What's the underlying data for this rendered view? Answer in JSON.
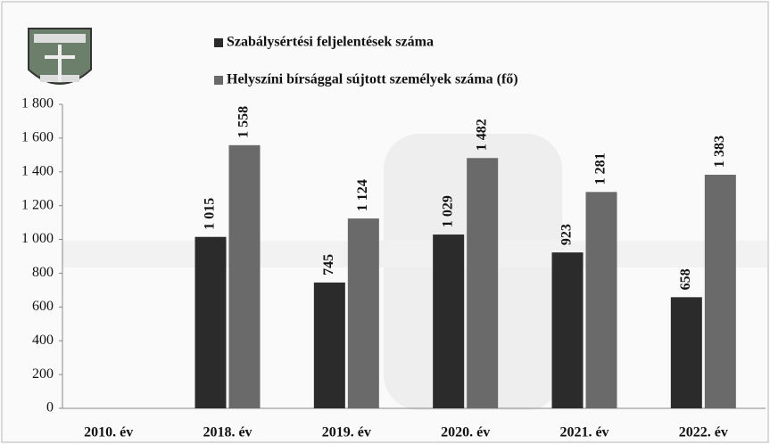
{
  "chart_data": {
    "type": "bar",
    "categories": [
      "2010. év",
      "2018. év",
      "2019. év",
      "2020. év",
      "2021. év",
      "2022. év"
    ],
    "series": [
      {
        "name": "Szabálysértési feljelentések száma",
        "color": "#2b2b2b",
        "values": [
          null,
          1015,
          745,
          1029,
          923,
          658
        ],
        "value_labels": [
          null,
          "1 015",
          "745",
          "1 029",
          "923",
          "658"
        ]
      },
      {
        "name": "Helyszíni bírsággal sújtott személyek száma (fő)",
        "color": "#6a6a6a",
        "values": [
          null,
          1558,
          1124,
          1482,
          1281,
          1383
        ],
        "value_labels": [
          null,
          "1 558",
          "1 124",
          "1 482",
          "1 281",
          "1 383"
        ]
      }
    ],
    "ylim": [
      0,
      1800
    ],
    "yticks": [
      0,
      200,
      400,
      600,
      800,
      {
        "value": 1000,
        "label": "1 000"
      },
      {
        "value": 1200,
        "label": "1 200"
      },
      {
        "value": 1400,
        "label": "1 400"
      },
      {
        "value": 1600,
        "label": "1 600"
      },
      {
        "value": 1800,
        "label": "1 800"
      }
    ],
    "grid": false
  }
}
